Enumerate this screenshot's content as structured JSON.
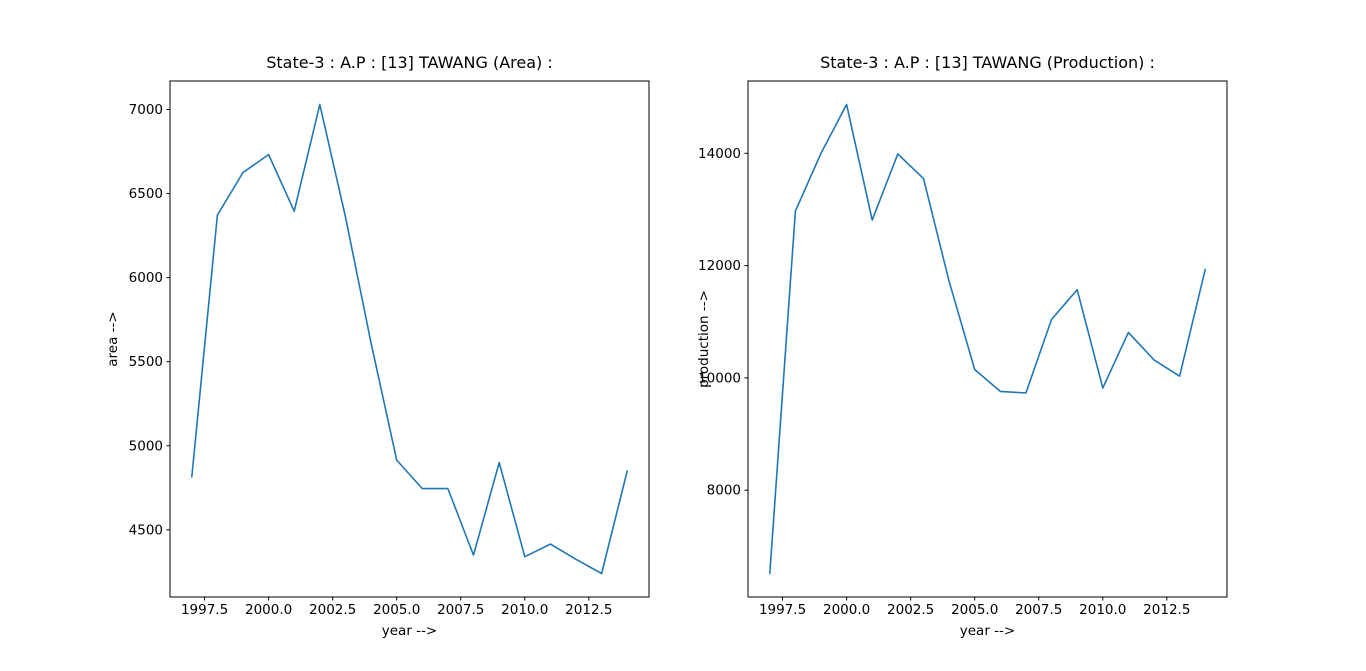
{
  "figure": {
    "background": "#ffffff",
    "line_color": "#1f77b4",
    "frame_color": "#000000",
    "text_color": "#000000"
  },
  "chart_data": [
    {
      "type": "line",
      "title": "State-3 : A.P : [13] TAWANG (Area) :",
      "xlabel": "year -->",
      "ylabel": "area -->",
      "x": [
        1997,
        1998,
        1999,
        2000,
        2001,
        2002,
        2003,
        2004,
        2005,
        2006,
        2007,
        2008,
        2009,
        2010,
        2011,
        2012,
        2013,
        2014
      ],
      "values": [
        4815,
        6372,
        6625,
        6732,
        6395,
        7030,
        6360,
        5610,
        4915,
        4745,
        4745,
        4350,
        4900,
        4340,
        4415,
        4325,
        4240,
        4850
      ],
      "xlim": [
        1996.15,
        2014.85
      ],
      "ylim": [
        4100.5,
        7169.5
      ],
      "xticks": [
        1997.5,
        2000.0,
        2002.5,
        2005.0,
        2007.5,
        2010.0,
        2012.5
      ],
      "xtick_labels": [
        "1997.5",
        "2000.0",
        "2002.5",
        "2005.0",
        "2007.5",
        "2010.0",
        "2012.5"
      ],
      "yticks": [
        4500,
        5000,
        5500,
        6000,
        6500,
        7000
      ],
      "ytick_labels": [
        "4500",
        "5000",
        "5500",
        "6000",
        "6500",
        "7000"
      ],
      "grid": false,
      "legend": null
    },
    {
      "type": "line",
      "title": "State-3 : A.P : [13] TAWANG (Production) :",
      "xlabel": "year -->",
      "ylabel": "production -->",
      "x": [
        1997,
        1998,
        1999,
        2000,
        2001,
        2002,
        2003,
        2004,
        2005,
        2006,
        2007,
        2008,
        2009,
        2010,
        2011,
        2012,
        2013,
        2014
      ],
      "values": [
        6515,
        12970,
        14000,
        14870,
        12810,
        13990,
        13550,
        11720,
        10150,
        9760,
        9730,
        11040,
        11570,
        9820,
        10810,
        10320,
        10030,
        11930
      ],
      "xlim": [
        1996.15,
        2014.85
      ],
      "ylim": [
        6097.25,
        15287.75
      ],
      "xticks": [
        1997.5,
        2000.0,
        2002.5,
        2005.0,
        2007.5,
        2010.0,
        2012.5
      ],
      "xtick_labels": [
        "1997.5",
        "2000.0",
        "2002.5",
        "2005.0",
        "2007.5",
        "2010.0",
        "2012.5"
      ],
      "yticks": [
        8000,
        10000,
        12000,
        14000
      ],
      "ytick_labels": [
        "8000",
        "10000",
        "12000",
        "14000"
      ],
      "grid": false,
      "legend": null
    }
  ]
}
